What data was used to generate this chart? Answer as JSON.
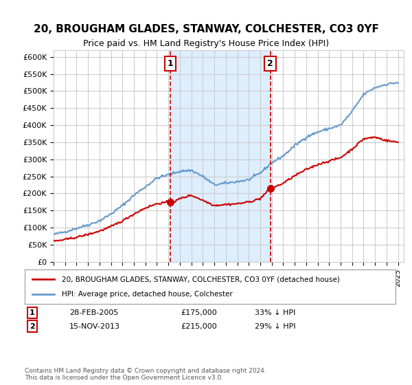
{
  "title": "20, BROUGHAM GLADES, STANWAY, COLCHESTER, CO3 0YF",
  "subtitle": "Price paid vs. HM Land Registry's House Price Index (HPI)",
  "ylabel_ticks": [
    "£0",
    "£50K",
    "£100K",
    "£150K",
    "£200K",
    "£250K",
    "£300K",
    "£350K",
    "£400K",
    "£450K",
    "£500K",
    "£550K",
    "£600K"
  ],
  "ylim": [
    0,
    620000
  ],
  "xlim_start": 1995.0,
  "xlim_end": 2025.5,
  "sale1_x": 2005.167,
  "sale1_y": 175000,
  "sale2_x": 2013.875,
  "sale2_y": 215000,
  "sale1_label": "28-FEB-2005",
  "sale1_price": "£175,000",
  "sale1_hpi": "33% ↓ HPI",
  "sale2_label": "15-NOV-2013",
  "sale2_price": "£215,000",
  "sale2_hpi": "29% ↓ HPI",
  "legend_line1": "20, BROUGHAM GLADES, STANWAY, COLCHESTER, CO3 0YF (detached house)",
  "legend_line2": "HPI: Average price, detached house, Colchester",
  "footnote": "Contains HM Land Registry data © Crown copyright and database right 2024.\nThis data is licensed under the Open Government Licence v3.0.",
  "price_color": "#cc0000",
  "hpi_color": "#6699cc",
  "shade_color": "#ddeeff",
  "vline_color": "#cc0000",
  "grid_color": "#cccccc",
  "bg_color": "#ffffff"
}
